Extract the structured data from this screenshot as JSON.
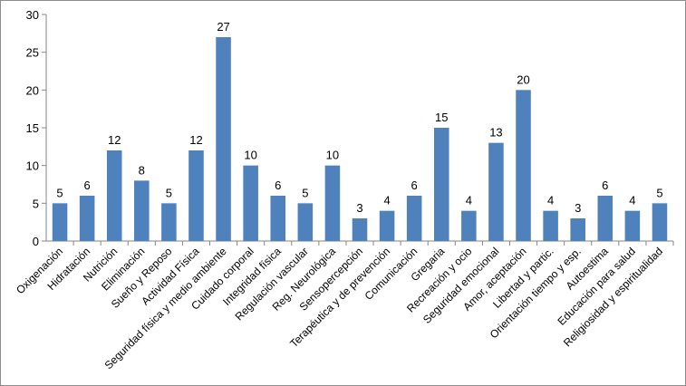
{
  "chart_data": {
    "type": "bar",
    "title": "",
    "xlabel": "",
    "ylabel": "",
    "ylim": [
      0,
      30
    ],
    "yticks": [
      0,
      5,
      10,
      15,
      20,
      25,
      30
    ],
    "grid": false,
    "legend": "none",
    "bar_color": "#4F81BD",
    "categories": [
      "Oxigenación",
      "Hidratación",
      "Nutrición",
      "Eliminación",
      "Sueño y Reposo",
      "Actividad Física",
      "Seguridad física y medio ambiente",
      "Cuidado corporal",
      "Integridad física",
      "Regulación vascular",
      "Reg. Neurológica",
      "Sensopercepción",
      "Terapéutica y de prevención",
      "Comunicación",
      "Gregaria",
      "Recreación y ocio",
      "Seguridad emocional",
      "Amor, aceptación",
      "Libertad y partic.",
      "Orientación tiempo y esp.",
      "Autoestima",
      "Educación para salud",
      "Religiosidad y espiritualidad"
    ],
    "values": [
      5,
      6,
      12,
      8,
      5,
      12,
      27,
      10,
      6,
      5,
      10,
      3,
      4,
      6,
      15,
      4,
      13,
      20,
      4,
      3,
      6,
      4,
      5
    ]
  }
}
